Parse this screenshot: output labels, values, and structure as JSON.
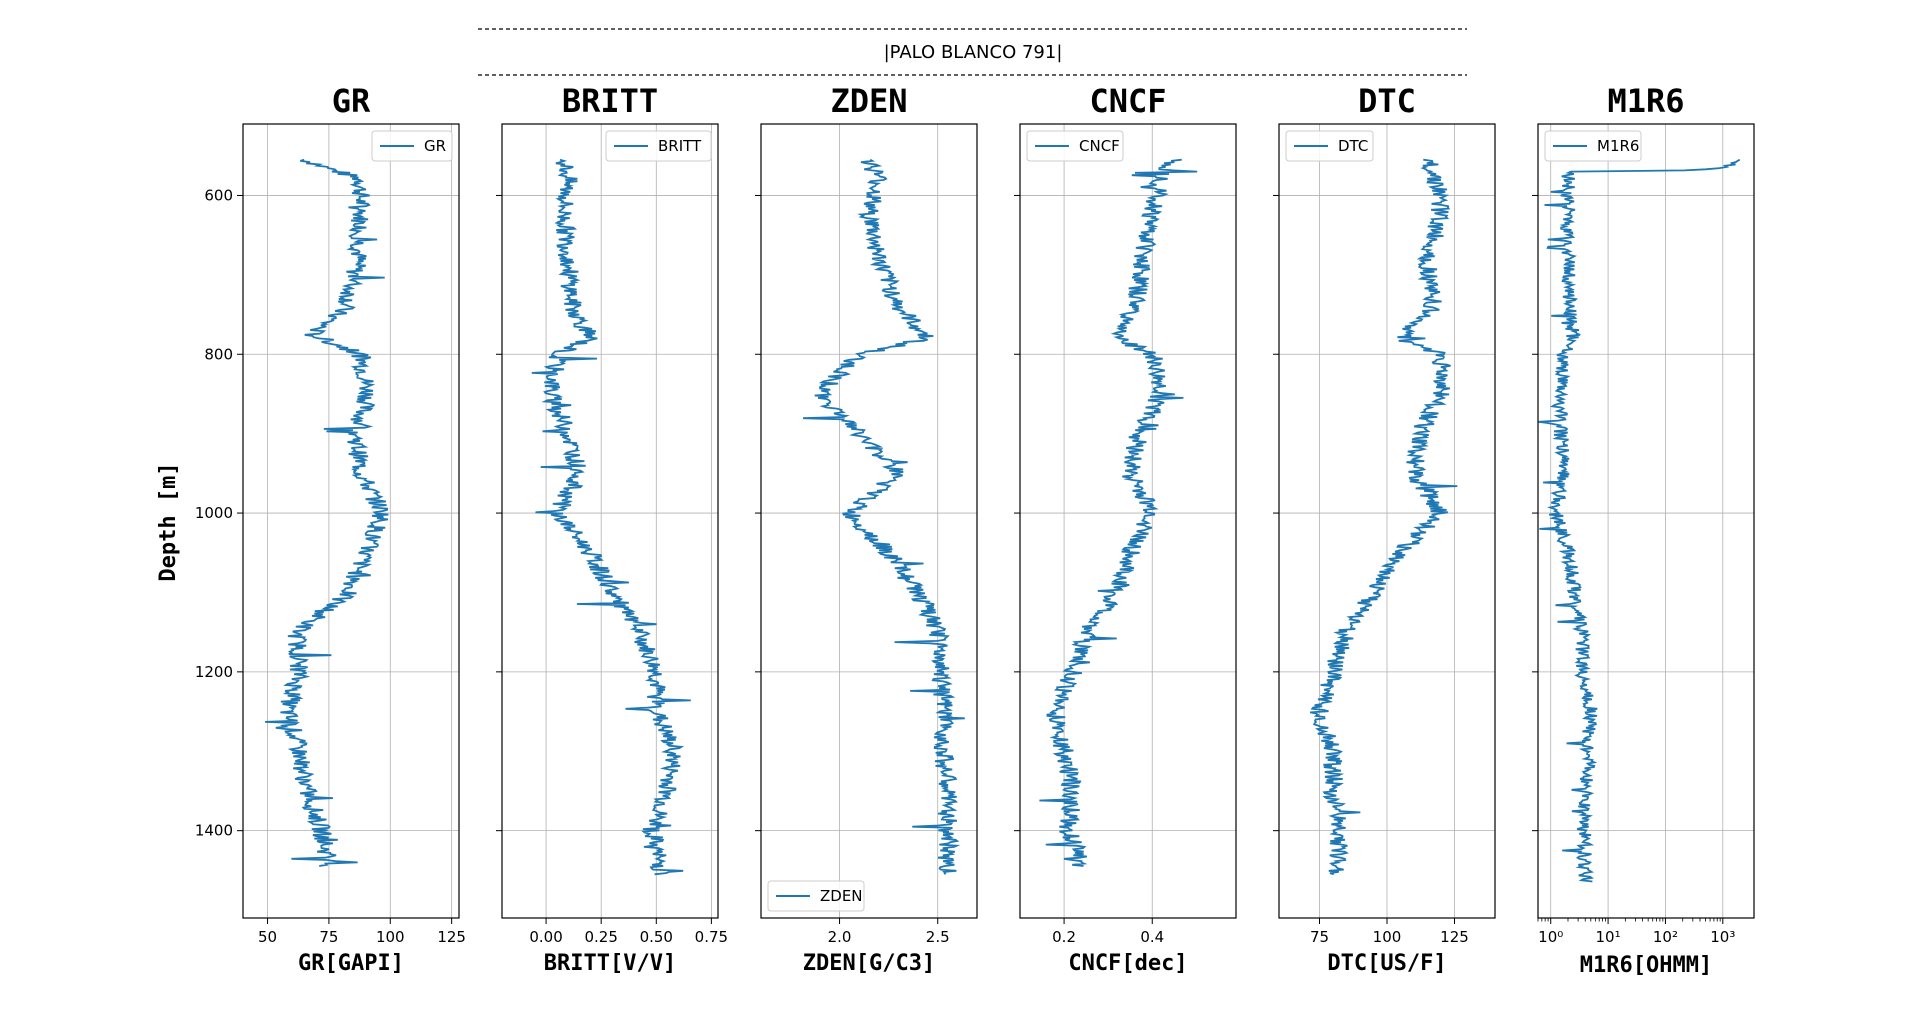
{
  "figure_title": "|PALO BLANCO 791|",
  "chart_data": {
    "type": "line",
    "well": "PALO BLANCO 791",
    "ylabel": "Depth [m]",
    "ylim": [
      1510,
      510
    ],
    "yticks": [
      600,
      800,
      1000,
      1200,
      1400
    ],
    "grid": true,
    "color": "#1f77b4",
    "depth_range": [
      555,
      1465
    ],
    "tracks": [
      {
        "title": "GR",
        "xlabel": "GR[GAPI]",
        "scale": "linear",
        "xlim": [
          40,
          128
        ],
        "xticks": [
          50,
          75,
          100,
          125
        ],
        "xtick_labels": [
          "50",
          "75",
          "100",
          "125"
        ],
        "legend": "GR",
        "legend_loc": "upper right",
        "depth": [
          555,
          580,
          620,
          680,
          740,
          775,
          800,
          850,
          900,
          950,
          1000,
          1050,
          1100,
          1150,
          1200,
          1250,
          1300,
          1350,
          1400,
          1440
        ],
        "values": [
          65,
          88,
          88,
          87,
          82,
          68,
          88,
          91,
          86,
          88,
          97,
          90,
          83,
          62,
          63,
          58,
          63,
          66,
          72,
          75
        ]
      },
      {
        "title": "BRITT",
        "xlabel": "BRITT[V/V]",
        "scale": "linear",
        "xlim": [
          -0.2,
          0.78
        ],
        "xticks": [
          0.0,
          0.25,
          0.5,
          0.75
        ],
        "xtick_labels": [
          "0.00",
          "0.25",
          "0.50",
          "0.75"
        ],
        "legend": "BRITT",
        "legend_loc": "upper right",
        "depth": [
          555,
          580,
          620,
          680,
          740,
          780,
          800,
          850,
          900,
          950,
          1000,
          1050,
          1100,
          1150,
          1200,
          1250,
          1300,
          1350,
          1400,
          1450
        ],
        "values": [
          0.08,
          0.1,
          0.08,
          0.1,
          0.12,
          0.2,
          0.05,
          0.02,
          0.1,
          0.15,
          0.05,
          0.2,
          0.3,
          0.42,
          0.5,
          0.5,
          0.58,
          0.55,
          0.48,
          0.52
        ]
      },
      {
        "title": "ZDEN",
        "xlabel": "ZDEN[G/C3]",
        "scale": "linear",
        "xlim": [
          1.6,
          2.7
        ],
        "xticks": [
          2.0,
          2.5
        ],
        "xtick_labels": [
          "2.0",
          "2.5"
        ],
        "legend": "ZDEN",
        "legend_loc": "lower left",
        "depth": [
          555,
          580,
          620,
          680,
          740,
          780,
          800,
          850,
          900,
          950,
          1000,
          1050,
          1100,
          1150,
          1200,
          1250,
          1300,
          1350,
          1400,
          1450
        ],
        "values": [
          2.15,
          2.2,
          2.15,
          2.2,
          2.3,
          2.45,
          2.1,
          1.9,
          2.1,
          2.3,
          2.05,
          2.25,
          2.4,
          2.5,
          2.52,
          2.53,
          2.53,
          2.55,
          2.55,
          2.55
        ]
      },
      {
        "title": "CNCF",
        "xlabel": "CNCF[dec]",
        "scale": "linear",
        "xlim": [
          0.1,
          0.59
        ],
        "xticks": [
          0.2,
          0.4
        ],
        "xtick_labels": [
          "0.2",
          "0.4"
        ],
        "legend": "CNCF",
        "legend_loc": "upper left",
        "depth": [
          555,
          580,
          620,
          680,
          740,
          780,
          800,
          850,
          900,
          950,
          1000,
          1050,
          1100,
          1150,
          1200,
          1250,
          1300,
          1350,
          1400,
          1440
        ],
        "values": [
          0.45,
          0.42,
          0.4,
          0.38,
          0.36,
          0.32,
          0.4,
          0.42,
          0.37,
          0.35,
          0.4,
          0.35,
          0.32,
          0.25,
          0.22,
          0.18,
          0.2,
          0.22,
          0.21,
          0.24
        ]
      },
      {
        "title": "DTC",
        "xlabel": "DTC[US/F]",
        "scale": "linear",
        "xlim": [
          60,
          140
        ],
        "xticks": [
          75,
          100,
          125
        ],
        "xtick_labels": [
          "75",
          "100",
          "125"
        ],
        "legend": "DTC",
        "legend_loc": "upper left",
        "depth": [
          555,
          580,
          620,
          680,
          740,
          780,
          800,
          850,
          900,
          950,
          1000,
          1050,
          1100,
          1150,
          1200,
          1250,
          1300,
          1350,
          1400,
          1450
        ],
        "values": [
          115,
          118,
          120,
          115,
          117,
          105,
          120,
          120,
          112,
          110,
          120,
          105,
          95,
          85,
          80,
          75,
          80,
          80,
          82,
          82
        ]
      },
      {
        "title": "M1R6",
        "xlabel": "M1R6[OHMM]",
        "scale": "log",
        "xlim": [
          0.6,
          3500
        ],
        "xticks": [
          1,
          10,
          100,
          1000
        ],
        "xtick_labels": [
          "10⁰",
          "10¹",
          "10²",
          "10³"
        ],
        "legend": "M1R6",
        "legend_loc": "upper left",
        "depth": [
          555,
          562,
          570,
          620,
          680,
          740,
          780,
          800,
          850,
          900,
          950,
          1000,
          1050,
          1100,
          1150,
          1200,
          1250,
          1300,
          1350,
          1400,
          1460
        ],
        "values": [
          1800,
          1500,
          2.0,
          2.0,
          2.0,
          2.2,
          2.5,
          1.7,
          1.4,
          1.5,
          1.7,
          1.2,
          2.0,
          2.6,
          3.5,
          3.5,
          5.0,
          4.5,
          4.0,
          3.8,
          4.0
        ]
      }
    ]
  }
}
